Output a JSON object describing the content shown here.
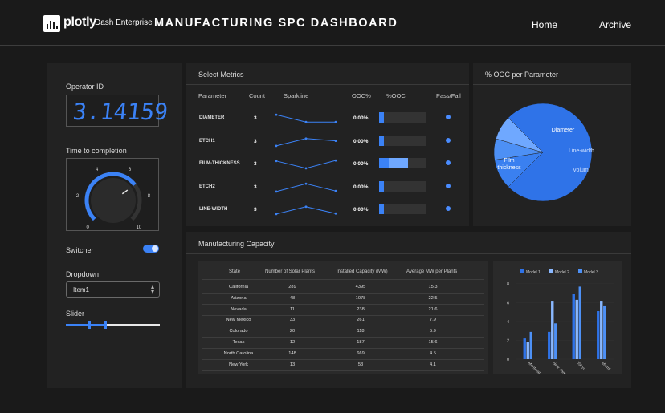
{
  "header": {
    "logo_text": "plotly",
    "logo_sub": "Dash Enterprise",
    "title": "MANUFACTURING SPC DASHBOARD",
    "nav": [
      "Home",
      "Archive"
    ]
  },
  "controls": {
    "operator_label": "Operator ID",
    "operator_value": "3.14159",
    "time_label": "Time to completion",
    "knob_ticks": [
      "0",
      "2",
      "4",
      "6",
      "8",
      "10"
    ],
    "knob_value": 7,
    "switch_label": "Switcher",
    "switch_on": true,
    "dropdown_label": "Dropdown",
    "dropdown_value": "Item1",
    "slider_label": "Slider",
    "slider_values": [
      0.25,
      0.42
    ]
  },
  "metrics": {
    "title": "Select Metrics",
    "headers": [
      "Parameter",
      "Count",
      "Sparkline",
      "OOC%",
      "%OOC",
      "Pass/Fail"
    ],
    "rows": [
      {
        "name": "DIAMETER",
        "count": "3",
        "ooc": "0.00%",
        "spark": [
          0.85,
          0.2,
          0.2
        ],
        "bar": 0.1,
        "bar2": 0
      },
      {
        "name": "ETCH1",
        "count": "3",
        "ooc": "0.00%",
        "spark": [
          0.15,
          0.8,
          0.6
        ],
        "bar": 0.1,
        "bar2": 0
      },
      {
        "name": "FILM-THICKNESS",
        "count": "3",
        "ooc": "0.00%",
        "spark": [
          0.8,
          0.15,
          0.85
        ],
        "bar": 0.2,
        "bar2": 0.42
      },
      {
        "name": "ETCH2",
        "count": "3",
        "ooc": "0.00%",
        "spark": [
          0.15,
          0.85,
          0.2
        ],
        "bar": 0.1,
        "bar2": 0
      },
      {
        "name": "LINE-WIDTH",
        "count": "3",
        "ooc": "0.00%",
        "spark": [
          0.15,
          0.8,
          0.2
        ],
        "bar": 0.1,
        "bar2": 0
      }
    ]
  },
  "pie": {
    "title": "% OOC per Parameter",
    "slices": [
      {
        "label": "Film thickness",
        "value": 0.75,
        "color": "#2f73e8"
      },
      {
        "label": "Diameter",
        "value": 0.1,
        "color": "#3a80f0"
      },
      {
        "label": "Line-width",
        "value": 0.07,
        "color": "#4d90f5"
      },
      {
        "label": "Volum",
        "value": 0.08,
        "color": "#6fa8ff"
      }
    ]
  },
  "capacity": {
    "title": "Manufacturing Capacity",
    "headers": [
      "State",
      "Number of Solar Plants",
      "Installed Capacity (MW)",
      "Average MW per Plants"
    ],
    "rows": [
      [
        "California",
        "289",
        "4395",
        "15.3"
      ],
      [
        "Arizona",
        "48",
        "1078",
        "22.5"
      ],
      [
        "Nevada",
        "11",
        "238",
        "21.6"
      ],
      [
        "New Mexico",
        "33",
        "261",
        "7.9"
      ],
      [
        "Colorado",
        "20",
        "118",
        "5.9"
      ],
      [
        "Texas",
        "12",
        "187",
        "15.6"
      ],
      [
        "North Carolina",
        "148",
        "669",
        "4.5"
      ],
      [
        "New York",
        "13",
        "53",
        "4.1"
      ]
    ]
  },
  "chart_data": {
    "type": "bar",
    "categories": [
      "Montreal",
      "New York",
      "Tokyo",
      "Miami"
    ],
    "series": [
      {
        "name": "Model 1",
        "values": [
          2.2,
          2.9,
          6.9,
          5.1
        ],
        "color": "#2f73e8"
      },
      {
        "name": "Model 2",
        "values": [
          1.8,
          6.2,
          6.3,
          6.2
        ],
        "color": "#8ab8ff"
      },
      {
        "name": "Model 3",
        "values": [
          2.9,
          3.8,
          7.7,
          5.7
        ],
        "color": "#4d90f5"
      }
    ],
    "yticks": [
      "0",
      "2",
      "4",
      "6",
      "8"
    ],
    "ylim": [
      0,
      8.5
    ],
    "legend": "top"
  }
}
